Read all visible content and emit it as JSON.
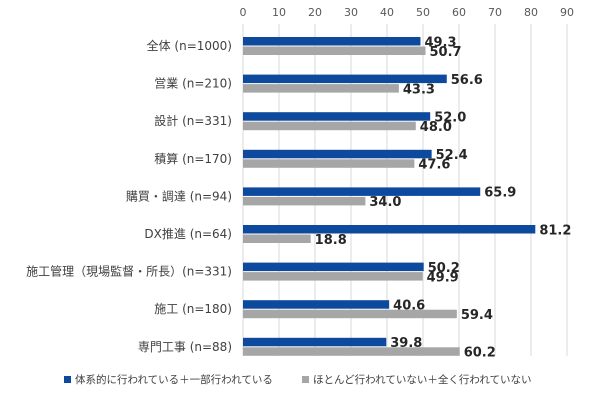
{
  "chart_data": {
    "type": "bar",
    "orientation": "horizontal",
    "title": "",
    "xlabel": "",
    "ylabel": "",
    "xlim": [
      0,
      90
    ],
    "x_ticks": [
      0,
      10,
      20,
      30,
      40,
      50,
      60,
      70,
      80,
      90
    ],
    "x_axis_position": "top",
    "grid": true,
    "legend_position": "bottom",
    "categories": [
      "全体 (n=1000)",
      "営業 (n=210)",
      "設計 (n=331)",
      "積算 (n=170)",
      "購買・調達 (n=94)",
      "DX推進 (n=64)",
      "施工管理（現場監督・所長）(n=331)",
      "施工 (n=180)",
      "専門工事 (n=88)"
    ],
    "series": [
      {
        "name": "体系的に行われている＋一部行われている",
        "color": "#0d4a9e",
        "values": [
          49.3,
          56.6,
          52.0,
          52.4,
          65.9,
          81.2,
          50.2,
          40.6,
          39.8
        ],
        "labels": [
          "49.3",
          "56.6",
          "52.0",
          "52.4",
          "65.9",
          "81.2",
          "50.2",
          "40.6",
          "39.8"
        ]
      },
      {
        "name": "ほとんど行われていない＋全く行われていない",
        "color": "#a6a6a6",
        "values": [
          50.7,
          43.3,
          48.0,
          47.6,
          34.0,
          18.8,
          49.9,
          59.4,
          60.2
        ],
        "labels": [
          "50.7",
          "43.3",
          "48.0",
          "47.6",
          "34.0",
          "18.8",
          "49.9",
          "59.4",
          "60.2"
        ]
      }
    ]
  }
}
